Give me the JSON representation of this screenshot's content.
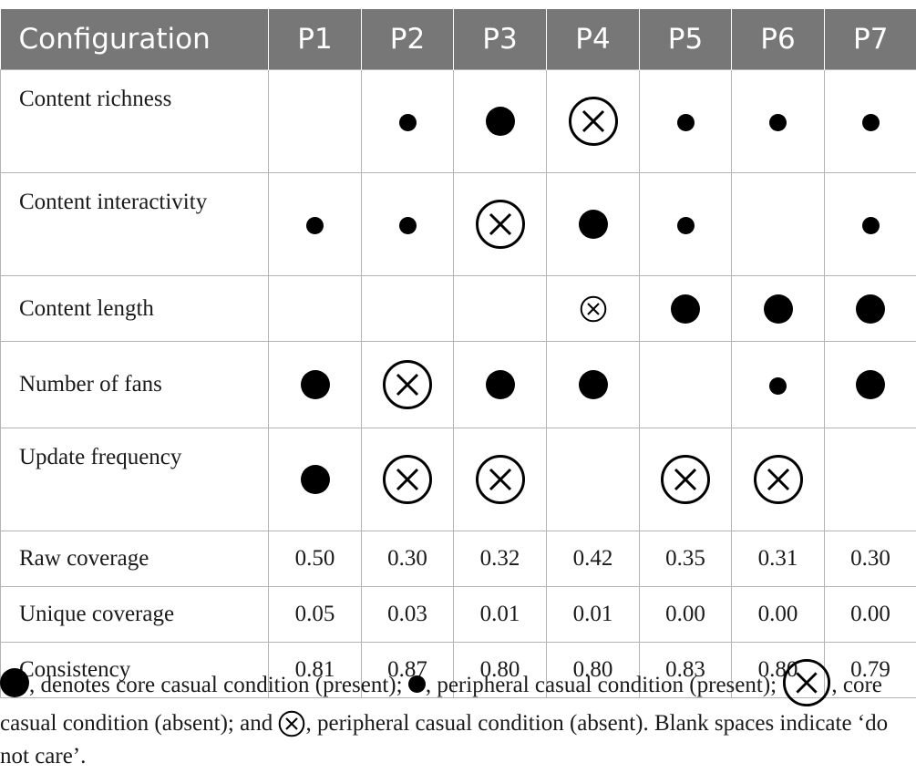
{
  "table": {
    "header": {
      "first": "Configuration",
      "paths": [
        "P1",
        "P2",
        "P3",
        "P4",
        "P5",
        "P6",
        "P7"
      ]
    },
    "condition_rows": [
      {
        "label": "Content richness",
        "cells": [
          "blank",
          "peripheral-present",
          "core-present",
          "core-absent",
          "peripheral-present",
          "peripheral-present",
          "peripheral-present"
        ]
      },
      {
        "label": "Content interactivity",
        "cells": [
          "peripheral-present",
          "peripheral-present",
          "core-absent",
          "core-present",
          "peripheral-present",
          "blank",
          "peripheral-present"
        ]
      },
      {
        "label": "Content length",
        "cells": [
          "blank",
          "blank",
          "blank",
          "peripheral-absent",
          "core-present",
          "core-present",
          "core-present"
        ]
      },
      {
        "label": "Number of fans",
        "cells": [
          "core-present",
          "core-absent",
          "core-present",
          "core-present",
          "blank",
          "peripheral-present",
          "core-present"
        ]
      },
      {
        "label": "Update frequency",
        "cells": [
          "core-present",
          "core-absent",
          "core-absent",
          "blank",
          "core-absent",
          "core-absent",
          "blank"
        ]
      }
    ],
    "value_rows": [
      {
        "label": "Raw coverage",
        "values": [
          "0.50",
          "0.30",
          "0.32",
          "0.42",
          "0.35",
          "0.31",
          "0.30"
        ]
      },
      {
        "label": "Unique coverage",
        "values": [
          "0.05",
          "0.03",
          "0.01",
          "0.01",
          "0.00",
          "0.00",
          "0.00"
        ]
      },
      {
        "label": "Consistency",
        "values": [
          "0.81",
          "0.87",
          "0.80",
          "0.80",
          "0.83",
          "0.80",
          "0.79"
        ]
      }
    ]
  },
  "note": {
    "core_present": ", denotes core casual condition (present); ",
    "peripheral_present": ", peripheral casual condition (present); ",
    "core_absent": ", core casual condition (absent); and ",
    "peripheral_absent": ", peripheral casual condition (absent). Blank spaces indicate ‘do not care’."
  }
}
